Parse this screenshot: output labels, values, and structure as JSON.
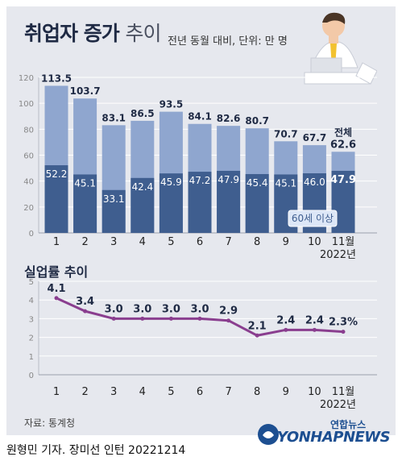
{
  "header": {
    "title_main": "취업자 증가",
    "title_sub": "추이",
    "unit": "전년 동월 대비, 단위: 만 명"
  },
  "chart_data": [
    {
      "type": "bar",
      "categories": [
        "1",
        "2",
        "3",
        "4",
        "5",
        "6",
        "7",
        "8",
        "9",
        "10",
        "11월"
      ],
      "x_note": "2022년",
      "yticks": [
        0,
        20,
        40,
        60,
        80,
        100,
        120
      ],
      "ylim": [
        0,
        120
      ],
      "series": [
        {
          "name": "전체",
          "values": [
            113.5,
            103.7,
            83.1,
            86.5,
            93.5,
            84.1,
            82.6,
            80.7,
            70.7,
            67.7,
            62.6
          ]
        },
        {
          "name": "60세 이상",
          "values": [
            52.2,
            45.1,
            33.1,
            42.4,
            45.9,
            47.2,
            47.9,
            45.4,
            45.1,
            46.0,
            47.9
          ]
        }
      ],
      "total_labels": [
        "113.5",
        "103.7",
        "83.1",
        "86.5",
        "93.5",
        "84.1",
        "82.6",
        "80.7",
        "70.7",
        "67.7",
        "62.6"
      ],
      "senior_labels": [
        "52.2",
        "45.1",
        "33.1",
        "42.4",
        "45.9",
        "47.2",
        "47.9",
        "45.4",
        "45.1",
        "46.0",
        "47.9"
      ],
      "colors": {
        "total": "#8fa6cf",
        "senior": "#3f5e8f",
        "badge_bg": "#dde7f7",
        "badge_fg": "#3f5e8f"
      }
    },
    {
      "type": "line",
      "title": "실업률 추이",
      "categories": [
        "1",
        "2",
        "3",
        "4",
        "5",
        "6",
        "7",
        "8",
        "9",
        "10",
        "11월"
      ],
      "x_note": "2022년",
      "yticks": [
        0,
        1,
        2,
        3,
        4,
        5
      ],
      "ylim": [
        0,
        5
      ],
      "values": [
        4.1,
        3.4,
        3.0,
        3.0,
        3.0,
        3.0,
        2.9,
        2.1,
        2.4,
        2.4,
        2.3
      ],
      "value_labels": [
        "4.1",
        "3.4",
        "3.0",
        "3.0",
        "3.0",
        "3.0",
        "2.9",
        "2.1",
        "2.4",
        "2.4",
        "2.3%"
      ],
      "colors": {
        "line": "#8a3e8f"
      }
    }
  ],
  "footer": {
    "source": "자료: 통계청",
    "credit": "원형민 기자. 장미선 인턴  20221214",
    "logo_ko": "연합뉴스",
    "logo_en": "YONHAPNEWS"
  }
}
